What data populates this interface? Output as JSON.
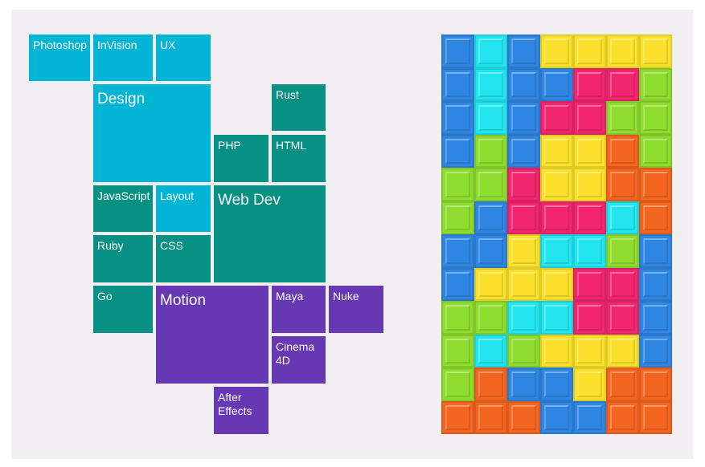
{
  "colors": {
    "cyan": "#03b5d4",
    "teal": "#079184",
    "purple": "#6638b4",
    "background": "#f1eff2"
  },
  "treemap": {
    "tiles": [
      {
        "label": "Photoshop",
        "group": "cyan"
      },
      {
        "label": "InVision",
        "group": "cyan"
      },
      {
        "label": "UX",
        "group": "cyan"
      },
      {
        "label": "Design",
        "group": "cyan"
      },
      {
        "label": "Rust",
        "group": "teal"
      },
      {
        "label": "PHP",
        "group": "teal"
      },
      {
        "label": "HTML",
        "group": "teal"
      },
      {
        "label": "JavaScript",
        "group": "teal"
      },
      {
        "label": "Layout",
        "group": "cyan"
      },
      {
        "label": "Web Dev",
        "group": "teal"
      },
      {
        "label": "Ruby",
        "group": "teal"
      },
      {
        "label": "CSS",
        "group": "teal"
      },
      {
        "label": "Go",
        "group": "teal"
      },
      {
        "label": "Motion",
        "group": "purple"
      },
      {
        "label": "Maya",
        "group": "purple"
      },
      {
        "label": "Nuke",
        "group": "purple"
      },
      {
        "label": "Cinema\n4D",
        "group": "purple"
      },
      {
        "label": "After\nEffects",
        "group": "purple"
      }
    ]
  },
  "block_grid": {
    "columns": 7,
    "rows": 12,
    "palette": {
      "b": "#2f86e2",
      "c": "#22e5ef",
      "y": "#fbe12b",
      "p": "#f2266f",
      "g": "#8fdc2f",
      "o": "#f4651f"
    },
    "cells": [
      "bcbyyyy",
      "bcbbppg",
      "bcbppgg",
      "bgbyyog",
      "ggpyyoo",
      "gbpppco",
      "bbyccgb",
      "byyyppb",
      "ggccppb",
      "gcgyyyb",
      "gobbyoo",
      "ooobboo"
    ]
  }
}
